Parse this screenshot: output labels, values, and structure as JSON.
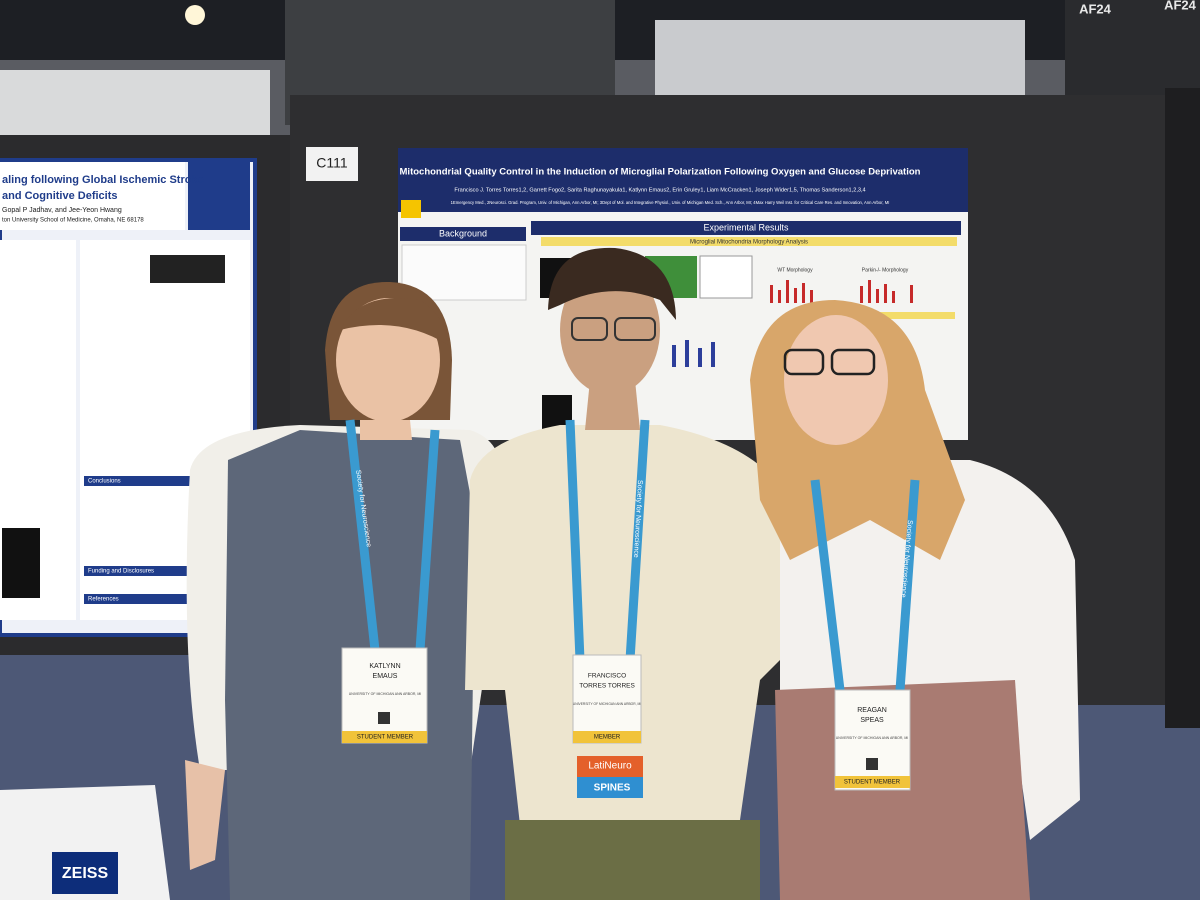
{
  "venue_signs": {
    "aisle_left": "AF24",
    "aisle_right": "AF24",
    "booth": "C111"
  },
  "left_poster": {
    "title_line_1": "aling following Global Ischemic Stroke",
    "title_line_2": "and Cognitive Deficits",
    "authors": "Gopal P Jadhav, and Jee-Yeon Hwang",
    "affiliation": "ton University School of Medicine, Omaha, NE 68178",
    "sections": [
      "Conclusions",
      "Funding and Disclosures",
      "References"
    ]
  },
  "center_poster": {
    "title": "Mitochondrial Quality Control in the Induction of Microglial Polarization Following Oxygen and Glucose Deprivation",
    "authors": "Francisco J. Torres Torres1,2, Garrett Fogo2, Sarita Raghunayakula1, Katlynn Emaus2, Erin Gruley1, Liam McCracken1, Joseph Wider1,5, Thomas Sanderson1,2,3,4",
    "affiliations": "1Emergency Med., 2Neurosci. Grad. Program, Univ. of Michigan, Ann Arbor, MI; 3Dept of Mol. and Integrative Physiol., Univ. of Michigan Med. Sch., Ann Arbor, MI; 4Max Harry Weil Inst. for Critical Care Res. and Innovation, Ann Arbor, MI",
    "sections": [
      "Background",
      "Experimental Results"
    ],
    "panel_title": "Microglial Mitochondria Morphology Analysis",
    "chart_labels": [
      "WT Morphology",
      "Parkin-/- Morphology"
    ]
  },
  "people": [
    {
      "lanyard": "Society for Neuroscience",
      "badge_name": [
        "KATLYNN",
        "EMAUS"
      ],
      "badge_affiliation": "UNIVERSITY OF MICHIGAN ANN ARBOR, MI",
      "badge_type": "STUDENT MEMBER"
    },
    {
      "lanyard": "Society for Neuroscience",
      "badge_name": [
        "FRANCISCO",
        "TORRES TORRES"
      ],
      "badge_affiliation": "UNIVERSITY OF MICHIGAN ANN ARBOR, MI",
      "badge_type": "MEMBER"
    },
    {
      "lanyard": "Society for Neuroscience",
      "badge_name": [
        "REAGAN",
        "SPEAS"
      ],
      "badge_affiliation": "UNIVERSITY OF MICHIGAN ANN ARBOR, MI",
      "badge_type": "STUDENT MEMBER"
    }
  ],
  "ribbons": [
    "LatiNeuro",
    "SPINES"
  ],
  "bag_brand": "ZEISS"
}
